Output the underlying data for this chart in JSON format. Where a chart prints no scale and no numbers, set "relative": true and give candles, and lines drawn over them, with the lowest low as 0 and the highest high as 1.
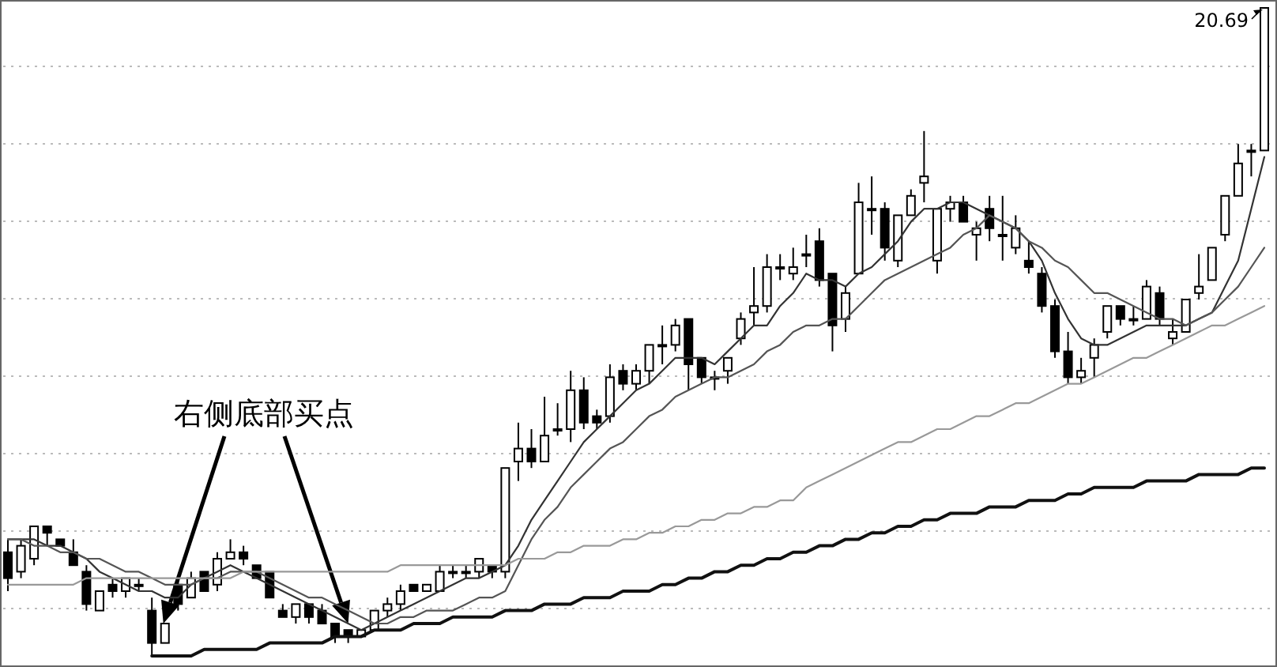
{
  "chart_data": {
    "type": "candlestick",
    "relative": true,
    "grid": "y",
    "annotations": [
      "右侧底部买点",
      "20.69"
    ],
    "categories": [
      null,
      null,
      null,
      null,
      null,
      null,
      null,
      null,
      null,
      null,
      null,
      null,
      null,
      null,
      null,
      null,
      null,
      null,
      null,
      null,
      null,
      null,
      null,
      null,
      null,
      null,
      null,
      null,
      null,
      null,
      null,
      null,
      null,
      null,
      null,
      null,
      null,
      null,
      null,
      null,
      null,
      null,
      null,
      null,
      null,
      null,
      null,
      null,
      null,
      null,
      null,
      null,
      null,
      null,
      null,
      null,
      null,
      null,
      null,
      null,
      null,
      null,
      null,
      null,
      null,
      null,
      null,
      null,
      null,
      null,
      null,
      null,
      null,
      null,
      null,
      null,
      null,
      null,
      null,
      null,
      null,
      null,
      null,
      null,
      null,
      null,
      null,
      null,
      null,
      null,
      null,
      null,
      null,
      null,
      null,
      null,
      null
    ],
    "ohlc": [
      [
        0.16,
        0.18,
        0.1,
        0.12
      ],
      [
        0.13,
        0.18,
        0.12,
        0.17
      ],
      [
        0.15,
        0.2,
        0.14,
        0.2
      ],
      [
        0.2,
        0.2,
        0.17,
        0.19
      ],
      [
        0.18,
        0.18,
        0.17,
        0.17
      ],
      [
        0.16,
        0.18,
        0.14,
        0.14
      ],
      [
        0.13,
        0.14,
        0.07,
        0.08
      ],
      [
        0.07,
        0.1,
        0.07,
        0.1
      ],
      [
        0.11,
        0.12,
        0.09,
        0.1
      ],
      [
        0.1,
        0.12,
        0.09,
        0.12
      ],
      [
        0.11,
        0.12,
        0.1,
        0.11
      ],
      [
        0.07,
        0.09,
        0,
        0.02
      ],
      [
        0.02,
        0.05,
        0.02,
        0.05
      ],
      [
        0.11,
        0.12,
        0.07,
        0.08
      ],
      [
        0.09,
        0.13,
        0.09,
        0.12
      ],
      [
        0.13,
        0.13,
        0.1,
        0.1
      ],
      [
        0.11,
        0.16,
        0.1,
        0.15
      ],
      [
        0.15,
        0.18,
        0.15,
        0.16
      ],
      [
        0.16,
        0.17,
        0.14,
        0.15
      ],
      [
        0.14,
        0.14,
        0.12,
        0.12
      ],
      [
        0.13,
        0.13,
        0.09,
        0.09
      ],
      [
        0.07,
        0.08,
        0.06,
        0.06
      ],
      [
        0.06,
        0.08,
        0.05,
        0.08
      ],
      [
        0.08,
        0.08,
        0.05,
        0.06
      ],
      [
        0.07,
        0.08,
        0.05,
        0.05
      ],
      [
        0.05,
        0.05,
        0.02,
        0.03
      ],
      [
        0.04,
        0.04,
        0.02,
        0.03
      ],
      [
        0.03,
        0.04,
        0.03,
        0.04
      ],
      [
        0.04,
        0.07,
        0.04,
        0.07
      ],
      [
        0.07,
        0.09,
        0.06,
        0.08
      ],
      [
        0.08,
        0.11,
        0.07,
        0.1
      ],
      [
        0.11,
        0.11,
        0.1,
        0.1
      ],
      [
        0.1,
        0.11,
        0.1,
        0.11
      ],
      [
        0.1,
        0.14,
        0.1,
        0.13
      ],
      [
        0.13,
        0.14,
        0.12,
        0.13
      ],
      [
        0.13,
        0.14,
        0.12,
        0.13
      ],
      [
        0.13,
        0.15,
        0.12,
        0.15
      ],
      [
        0.14,
        0.14,
        0.12,
        0.13
      ],
      [
        0.13,
        0.29,
        0.12,
        0.29
      ],
      [
        0.3,
        0.36,
        0.27,
        0.32
      ],
      [
        0.32,
        0.35,
        0.29,
        0.3
      ],
      [
        0.3,
        0.4,
        0.3,
        0.34
      ],
      [
        0.35,
        0.39,
        0.34,
        0.35
      ],
      [
        0.35,
        0.44,
        0.33,
        0.41
      ],
      [
        0.41,
        0.43,
        0.35,
        0.36
      ],
      [
        0.37,
        0.38,
        0.35,
        0.36
      ],
      [
        0.37,
        0.45,
        0.36,
        0.43
      ],
      [
        0.44,
        0.45,
        0.41,
        0.42
      ],
      [
        0.42,
        0.45,
        0.41,
        0.44
      ],
      [
        0.44,
        0.48,
        0.42,
        0.48
      ],
      [
        0.48,
        0.51,
        0.45,
        0.48
      ],
      [
        0.48,
        0.52,
        0.47,
        0.51
      ],
      [
        0.52,
        0.52,
        0.41,
        0.45
      ],
      [
        0.46,
        0.46,
        0.42,
        0.43
      ],
      [
        0.43,
        0.44,
        0.41,
        0.43
      ],
      [
        0.44,
        0.46,
        0.42,
        0.46
      ],
      [
        0.49,
        0.53,
        0.48,
        0.52
      ],
      [
        0.53,
        0.6,
        0.51,
        0.54
      ],
      [
        0.54,
        0.62,
        0.53,
        0.6
      ],
      [
        0.6,
        0.62,
        0.58,
        0.6
      ],
      [
        0.59,
        0.63,
        0.58,
        0.6
      ],
      [
        0.62,
        0.65,
        0.6,
        0.62
      ],
      [
        0.64,
        0.66,
        0.57,
        0.58
      ],
      [
        0.59,
        0.59,
        0.47,
        0.51
      ],
      [
        0.52,
        0.57,
        0.5,
        0.56
      ],
      [
        0.59,
        0.73,
        0.59,
        0.7
      ],
      [
        0.69,
        0.74,
        0.65,
        0.69
      ],
      [
        0.69,
        0.7,
        0.61,
        0.63
      ],
      [
        0.61,
        0.68,
        0.6,
        0.68
      ],
      [
        0.68,
        0.72,
        0.68,
        0.71
      ],
      [
        0.73,
        0.81,
        0.7,
        0.74
      ],
      [
        0.61,
        0.69,
        0.59,
        0.69
      ],
      [
        0.69,
        0.71,
        0.67,
        0.7
      ],
      [
        0.7,
        0.71,
        0.67,
        0.67
      ],
      [
        0.65,
        0.67,
        0.61,
        0.66
      ],
      [
        0.69,
        0.71,
        0.64,
        0.66
      ],
      [
        0.65,
        0.71,
        0.61,
        0.65
      ],
      [
        0.63,
        0.68,
        0.62,
        0.66
      ],
      [
        0.61,
        0.64,
        0.59,
        0.6
      ],
      [
        0.59,
        0.6,
        0.53,
        0.54
      ],
      [
        0.54,
        0.55,
        0.46,
        0.47
      ],
      [
        0.47,
        0.5,
        0.42,
        0.43
      ],
      [
        0.43,
        0.46,
        0.42,
        0.44
      ],
      [
        0.46,
        0.49,
        0.43,
        0.48
      ],
      [
        0.5,
        0.54,
        0.49,
        0.54
      ],
      [
        0.54,
        0.54,
        0.51,
        0.52
      ],
      [
        0.52,
        0.54,
        0.51,
        0.52
      ],
      [
        0.52,
        0.58,
        0.52,
        0.57
      ],
      [
        0.56,
        0.57,
        0.51,
        0.52
      ],
      [
        0.49,
        0.52,
        0.48,
        0.5
      ],
      [
        0.5,
        0.55,
        0.5,
        0.55
      ],
      [
        0.56,
        0.62,
        0.55,
        0.57
      ],
      [
        0.58,
        0.63,
        0.58,
        0.63
      ],
      [
        0.65,
        0.71,
        0.64,
        0.71
      ],
      [
        0.71,
        0.79,
        0.71,
        0.76
      ],
      [
        0.78,
        0.79,
        0.74,
        0.78
      ],
      [
        0.78,
        1,
        0.78,
        1
      ]
    ],
    "series": [
      {
        "type": "line",
        "color": "#333333",
        "values": [
          0.18,
          0.18,
          0.18,
          0.17,
          0.17,
          0.16,
          0.15,
          0.13,
          0.12,
          0.11,
          0.1,
          0.1,
          0.09,
          0.09,
          0.11,
          0.12,
          0.13,
          0.14,
          0.13,
          0.12,
          0.11,
          0.1,
          0.09,
          0.08,
          0.07,
          0.06,
          0.05,
          0.04,
          0.05,
          0.06,
          0.07,
          0.08,
          0.09,
          0.1,
          0.11,
          0.12,
          0.12,
          0.13,
          0.14,
          0.17,
          0.21,
          0.24,
          0.27,
          0.3,
          0.33,
          0.35,
          0.37,
          0.39,
          0.41,
          0.42,
          0.44,
          0.46,
          0.46,
          0.46,
          0.45,
          0.47,
          0.49,
          0.51,
          0.51,
          0.54,
          0.56,
          0.59,
          0.58,
          0.58,
          0.57,
          0.59,
          0.6,
          0.62,
          0.64,
          0.67,
          0.69,
          0.69,
          0.7,
          0.7,
          0.69,
          0.68,
          0.67,
          0.66,
          0.64,
          0.61,
          0.56,
          0.52,
          0.49,
          0.48,
          0.48,
          0.49,
          0.5,
          0.51,
          0.51,
          0.51,
          0.51,
          0.52,
          0.53,
          0.57,
          0.61,
          0.69,
          0.77
        ]
      },
      {
        "type": "line",
        "color": "#555555",
        "values": [
          0.18,
          0.18,
          0.17,
          0.17,
          0.16,
          0.16,
          0.15,
          0.15,
          0.14,
          0.13,
          0.13,
          0.12,
          0.11,
          0.11,
          0.11,
          0.12,
          0.12,
          0.13,
          0.13,
          0.13,
          0.12,
          0.11,
          0.1,
          0.09,
          0.09,
          0.08,
          0.07,
          0.06,
          0.05,
          0.05,
          0.06,
          0.06,
          0.07,
          0.07,
          0.07,
          0.08,
          0.09,
          0.09,
          0.1,
          0.14,
          0.18,
          0.21,
          0.23,
          0.26,
          0.28,
          0.3,
          0.32,
          0.33,
          0.35,
          0.37,
          0.38,
          0.4,
          0.41,
          0.42,
          0.43,
          0.43,
          0.44,
          0.45,
          0.47,
          0.48,
          0.5,
          0.51,
          0.51,
          0.52,
          0.52,
          0.54,
          0.56,
          0.58,
          0.59,
          0.6,
          0.61,
          0.62,
          0.63,
          0.65,
          0.66,
          0.68,
          0.67,
          0.66,
          0.64,
          0.63,
          0.61,
          0.6,
          0.58,
          0.56,
          0.56,
          0.55,
          0.54,
          0.53,
          0.52,
          0.52,
          0.51,
          0.52,
          0.53,
          0.55,
          0.57,
          0.6,
          0.63
        ]
      },
      {
        "type": "line",
        "color": "#999999",
        "values": [
          0.11,
          0.11,
          0.11,
          0.11,
          0.11,
          0.11,
          0.12,
          0.12,
          0.12,
          0.12,
          0.12,
          0.12,
          0.12,
          0.12,
          0.12,
          0.12,
          0.12,
          0.12,
          0.13,
          0.13,
          0.13,
          0.13,
          0.13,
          0.13,
          0.13,
          0.13,
          0.13,
          0.13,
          0.13,
          0.13,
          0.14,
          0.14,
          0.14,
          0.14,
          0.14,
          0.14,
          0.14,
          0.14,
          0.14,
          0.15,
          0.15,
          0.15,
          0.16,
          0.16,
          0.17,
          0.17,
          0.17,
          0.18,
          0.18,
          0.19,
          0.19,
          0.2,
          0.2,
          0.21,
          0.21,
          0.22,
          0.22,
          0.23,
          0.23,
          0.24,
          0.24,
          0.26,
          0.27,
          0.28,
          0.29,
          0.3,
          0.31,
          0.32,
          0.33,
          0.33,
          0.34,
          0.35,
          0.35,
          0.36,
          0.37,
          0.37,
          0.38,
          0.39,
          0.39,
          0.4,
          0.41,
          0.42,
          0.42,
          0.43,
          0.44,
          0.45,
          0.46,
          0.46,
          0.47,
          0.48,
          0.49,
          0.5,
          0.51,
          0.51,
          0.52,
          0.53,
          0.54
        ]
      },
      {
        "type": "line",
        "color": "#111111",
        "values": [
          null,
          null,
          null,
          null,
          null,
          null,
          null,
          null,
          null,
          null,
          null,
          0,
          0,
          0,
          0,
          0.01,
          0.01,
          0.01,
          0.01,
          0.01,
          0.02,
          0.02,
          0.02,
          0.02,
          0.02,
          0.03,
          0.03,
          0.03,
          0.04,
          0.04,
          0.04,
          0.05,
          0.05,
          0.05,
          0.06,
          0.06,
          0.06,
          0.06,
          0.07,
          0.07,
          0.07,
          0.08,
          0.08,
          0.08,
          0.09,
          0.09,
          0.09,
          0.1,
          0.1,
          0.1,
          0.11,
          0.11,
          0.12,
          0.12,
          0.13,
          0.13,
          0.14,
          0.14,
          0.15,
          0.15,
          0.16,
          0.16,
          0.17,
          0.17,
          0.18,
          0.18,
          0.19,
          0.19,
          0.2,
          0.2,
          0.21,
          0.21,
          0.22,
          0.22,
          0.22,
          0.23,
          0.23,
          0.23,
          0.24,
          0.24,
          0.24,
          0.25,
          0.25,
          0.26,
          0.26,
          0.26,
          0.26,
          0.27,
          0.27,
          0.27,
          0.27,
          0.28,
          0.28,
          0.28,
          0.28,
          0.29,
          0.29
        ]
      }
    ]
  }
}
